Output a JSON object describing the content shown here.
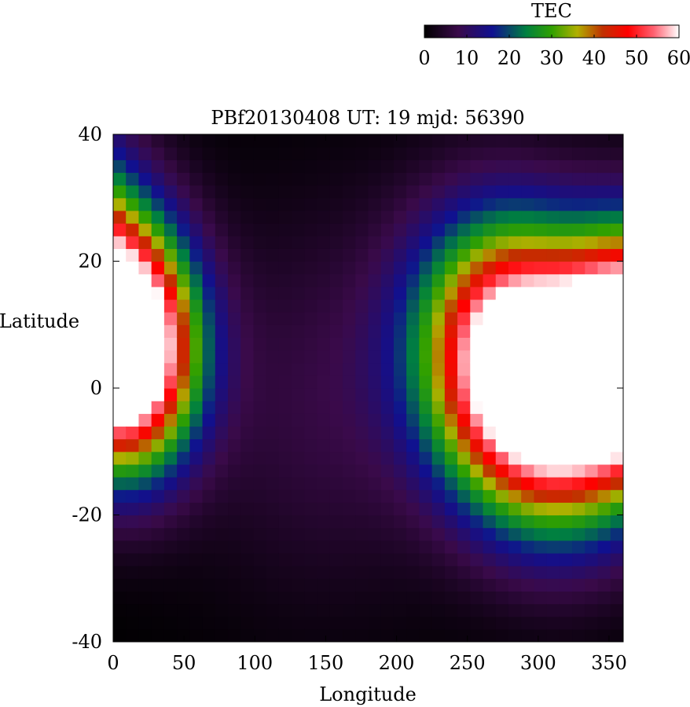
{
  "chart_data": {
    "type": "heatmap",
    "title": "PBf20130408  UT: 19  mjd: 56390",
    "xlabel": "Longitude",
    "ylabel": "Latitude",
    "xlim": [
      0,
      360
    ],
    "ylim": [
      -40,
      40
    ],
    "x_ticks": [
      "0",
      "50",
      "100",
      "150",
      "200",
      "250",
      "300",
      "350"
    ],
    "y_ticks": [
      "40",
      "20",
      "0",
      "-20",
      "-40"
    ],
    "grid": false,
    "colorbar": {
      "label": "TEC",
      "range": [
        0,
        60
      ],
      "ticks": [
        "0",
        "10",
        "20",
        "30",
        "40",
        "50",
        "60"
      ],
      "placement": "top-right",
      "stops": [
        {
          "v": 0,
          "c": "#000000"
        },
        {
          "v": 8,
          "c": "#3a0a4a"
        },
        {
          "v": 16,
          "c": "#101090"
        },
        {
          "v": 24,
          "c": "#008040"
        },
        {
          "v": 30,
          "c": "#30a000"
        },
        {
          "v": 36,
          "c": "#b0b000"
        },
        {
          "v": 42,
          "c": "#c03000"
        },
        {
          "v": 48,
          "c": "#ff0000"
        },
        {
          "v": 54,
          "c": "#ff6070"
        },
        {
          "v": 60,
          "c": "#ffffff"
        }
      ]
    },
    "grid_resolution": {
      "lon_step": 9,
      "lat_step": 2
    }
  }
}
